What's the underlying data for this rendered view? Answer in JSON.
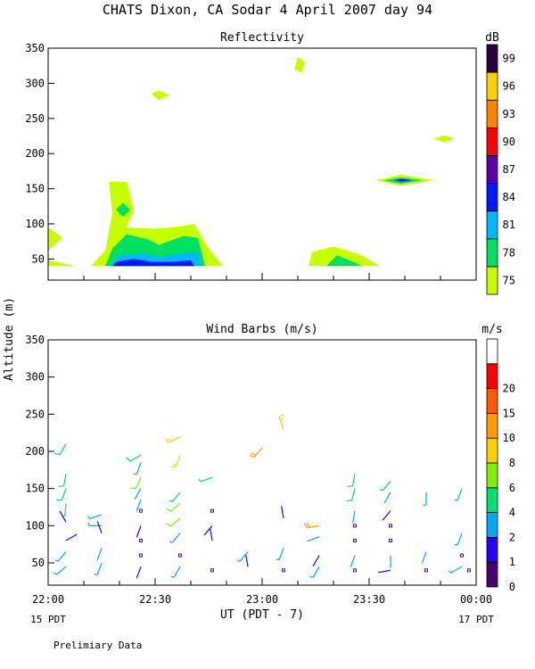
{
  "page_title": "CHATS Dixon, CA  Sodar   4 April 2007  day  94",
  "ylabel": "Altitude (m)",
  "footer_note": "Prelimiary Data",
  "chart_data": [
    {
      "type": "heatmap",
      "title": "Reflectivity",
      "units": "dB",
      "xlabel": "",
      "ylabel": "Altitude (m)",
      "xlim": [
        0,
        120
      ],
      "ylim": [
        20,
        350
      ],
      "yticks": [
        50,
        100,
        150,
        200,
        250,
        300,
        350
      ],
      "xticks_min": [
        0,
        10,
        20,
        30,
        40,
        50,
        60,
        70,
        80,
        90,
        100,
        110,
        120
      ],
      "colorbar": {
        "levels": [
          75,
          78,
          81,
          84,
          87,
          90,
          93,
          96,
          99
        ],
        "colors": [
          "#c6ff00",
          "#00e060",
          "#00b8ff",
          "#0018ff",
          "#5a00a8",
          "#ff0000",
          "#ff8400",
          "#ffd000",
          "#28003c"
        ]
      },
      "contours": [
        {
          "level": 75,
          "points": [
            [
              0,
              95
            ],
            [
              4,
              80
            ],
            [
              0,
              62
            ]
          ]
        },
        {
          "level": 75,
          "points": [
            [
              0,
              48
            ],
            [
              8,
              40
            ],
            [
              0,
              40
            ]
          ]
        },
        {
          "level": 75,
          "points": [
            [
              12,
              40
            ],
            [
              16,
              62
            ],
            [
              18,
              115
            ],
            [
              17,
              160
            ],
            [
              22,
              160
            ],
            [
              24,
              120
            ],
            [
              22,
              95
            ],
            [
              30,
              93
            ],
            [
              36,
              96
            ],
            [
              41,
              100
            ],
            [
              45,
              65
            ],
            [
              49,
              40
            ]
          ]
        },
        {
          "level": 75,
          "points": [
            [
              29,
              285
            ],
            [
              31,
              290
            ],
            [
              34,
              283
            ],
            [
              31,
              276
            ]
          ]
        },
        {
          "level": 75,
          "points": [
            [
              69,
              320
            ],
            [
              70,
              338
            ],
            [
              72,
              330
            ],
            [
              71,
              315
            ]
          ]
        },
        {
          "level": 75,
          "points": [
            [
              73,
              40
            ],
            [
              74,
              60
            ],
            [
              80,
              68
            ],
            [
              88,
              55
            ],
            [
              93,
              40
            ]
          ]
        },
        {
          "level": 75,
          "points": [
            [
              92,
              162
            ],
            [
              99,
              170
            ],
            [
              108,
              162
            ],
            [
              99,
              154
            ]
          ]
        },
        {
          "level": 75,
          "points": [
            [
              108,
              221
            ],
            [
              111,
              226
            ],
            [
              114,
              221
            ],
            [
              111,
              216
            ]
          ]
        },
        {
          "level": 78,
          "points": [
            [
              16,
              40
            ],
            [
              18,
              65
            ],
            [
              22,
              85
            ],
            [
              28,
              78
            ],
            [
              31,
              70
            ],
            [
              38,
              83
            ],
            [
              42,
              80
            ],
            [
              44,
              40
            ]
          ]
        },
        {
          "level": 78,
          "points": [
            [
              19,
              120
            ],
            [
              21,
              130
            ],
            [
              23,
              120
            ],
            [
              21,
              110
            ]
          ]
        },
        {
          "level": 78,
          "points": [
            [
              78,
              40
            ],
            [
              81,
              55
            ],
            [
              86,
              45
            ],
            [
              88,
              40
            ]
          ]
        },
        {
          "level": 78,
          "points": [
            [
              94,
              162
            ],
            [
              99,
              166
            ],
            [
              105,
              162
            ],
            [
              99,
              157
            ]
          ]
        },
        {
          "level": 81,
          "points": [
            [
              17,
              40
            ],
            [
              20,
              55
            ],
            [
              27,
              58
            ],
            [
              31,
              52
            ],
            [
              36,
              57
            ],
            [
              42,
              60
            ],
            [
              43,
              40
            ]
          ]
        },
        {
          "level": 81,
          "points": [
            [
              96,
              162
            ],
            [
              99,
              165
            ],
            [
              103,
              162
            ],
            [
              99,
              159
            ]
          ]
        },
        {
          "level": 84,
          "points": [
            [
              18,
              40
            ],
            [
              19,
              46
            ],
            [
              24,
              50
            ],
            [
              29,
              46
            ],
            [
              35,
              46
            ],
            [
              40,
              48
            ],
            [
              41,
              40
            ]
          ]
        },
        {
          "level": 84,
          "points": [
            [
              97,
              162
            ],
            [
              99,
              164
            ],
            [
              102,
              162
            ],
            [
              99,
              160
            ]
          ]
        },
        {
          "level": 87,
          "points": [
            [
              98,
              162
            ],
            [
              99,
              163
            ],
            [
              101,
              162
            ],
            [
              99,
              161
            ]
          ]
        }
      ]
    },
    {
      "type": "scatter",
      "title": "Wind Barbs (m/s)",
      "units": "m/s",
      "xlabel": "UT  (PDT - 7)",
      "ylabel": "Altitude (m)",
      "xlim": [
        0,
        120
      ],
      "ylim": [
        20,
        350
      ],
      "yticks": [
        50,
        100,
        150,
        200,
        250,
        300,
        350
      ],
      "xtick_labels": [
        {
          "x": 0,
          "label": "22:00"
        },
        {
          "x": 30,
          "label": "22:30"
        },
        {
          "x": 60,
          "label": "23:00"
        },
        {
          "x": 90,
          "label": "23:30"
        },
        {
          "x": 120,
          "label": "00:00"
        }
      ],
      "xtick_sublabels": [
        {
          "x": 0,
          "label": "15 PDT"
        },
        {
          "x": 120,
          "label": "17 PDT"
        }
      ],
      "colorbar": {
        "levels": [
          0,
          1,
          2,
          4,
          6,
          8,
          10,
          15,
          20
        ],
        "colors": [
          "#4a0070",
          "#2800ff",
          "#00a8ff",
          "#00e070",
          "#80f000",
          "#ffd000",
          "#ff9a00",
          "#ff5a00",
          "#ff0000",
          "#ffffff"
        ]
      },
      "barbs": [
        {
          "t": 5,
          "z": 210,
          "speed": 5,
          "dir": 210
        },
        {
          "t": 5,
          "z": 170,
          "speed": 5,
          "dir": 190
        },
        {
          "t": 5,
          "z": 150,
          "speed": 5,
          "dir": 200
        },
        {
          "t": 5,
          "z": 130,
          "speed": 4,
          "dir": 185
        },
        {
          "t": 5,
          "z": 105,
          "speed": 1,
          "dir": 330
        },
        {
          "t": 5,
          "z": 80,
          "speed": 1.5,
          "dir": 60
        },
        {
          "t": 5,
          "z": 65,
          "speed": 3,
          "dir": 220
        },
        {
          "t": 5,
          "z": 45,
          "speed": 3,
          "dir": 230
        },
        {
          "t": 15,
          "z": 115,
          "speed": 3,
          "dir": 250
        },
        {
          "t": 15,
          "z": 100,
          "speed": 3,
          "dir": 270
        },
        {
          "t": 15,
          "z": 90,
          "speed": 1,
          "dir": 340
        },
        {
          "t": 15,
          "z": 70,
          "speed": 2,
          "dir": 200
        },
        {
          "t": 15,
          "z": 50,
          "speed": 3,
          "dir": 200
        },
        {
          "t": 26,
          "z": 195,
          "speed": 5,
          "dir": 240
        },
        {
          "t": 26,
          "z": 185,
          "speed": 3,
          "dir": 200
        },
        {
          "t": 26,
          "z": 165,
          "speed": 7,
          "dir": 205
        },
        {
          "t": 26,
          "z": 150,
          "speed": 2,
          "dir": 210
        },
        {
          "t": 26,
          "z": 135,
          "speed": 2,
          "dir": 200
        },
        {
          "t": 26,
          "z": 120,
          "speed": 0,
          "dir": 0
        },
        {
          "t": 26,
          "z": 100,
          "speed": 1,
          "dir": 200
        },
        {
          "t": 26,
          "z": 80,
          "speed": 0,
          "dir": 0
        },
        {
          "t": 26,
          "z": 60,
          "speed": 0,
          "dir": 0
        },
        {
          "t": 26,
          "z": 45,
          "speed": 1,
          "dir": 200
        },
        {
          "t": 37,
          "z": 220,
          "speed": 9,
          "dir": 240
        },
        {
          "t": 37,
          "z": 195,
          "speed": 9,
          "dir": 200
        },
        {
          "t": 37,
          "z": 145,
          "speed": 4,
          "dir": 220
        },
        {
          "t": 37,
          "z": 130,
          "speed": 7,
          "dir": 230
        },
        {
          "t": 37,
          "z": 110,
          "speed": 7,
          "dir": 230
        },
        {
          "t": 37,
          "z": 90,
          "speed": 3,
          "dir": 220
        },
        {
          "t": 37,
          "z": 60,
          "speed": 0,
          "dir": 0
        },
        {
          "t": 37,
          "z": 45,
          "speed": 3,
          "dir": 210
        },
        {
          "t": 46,
          "z": 165,
          "speed": 4,
          "dir": 250
        },
        {
          "t": 46,
          "z": 120,
          "speed": 0,
          "dir": 0
        },
        {
          "t": 46,
          "z": 100,
          "speed": 1,
          "dir": 220
        },
        {
          "t": 46,
          "z": 80,
          "speed": 1,
          "dir": 350
        },
        {
          "t": 46,
          "z": 40,
          "speed": 0,
          "dir": 0
        },
        {
          "t": 56,
          "z": 45,
          "speed": 1,
          "dir": 350
        },
        {
          "t": 56,
          "z": 65,
          "speed": 3,
          "dir": 220
        },
        {
          "t": 60,
          "z": 205,
          "speed": 10,
          "dir": 220
        },
        {
          "t": 66,
          "z": 230,
          "speed": 8,
          "dir": 340
        },
        {
          "t": 66,
          "z": 110,
          "speed": 1,
          "dir": 350
        },
        {
          "t": 66,
          "z": 70,
          "speed": 3,
          "dir": 200
        },
        {
          "t": 66,
          "z": 40,
          "speed": 0,
          "dir": 0
        },
        {
          "t": 76,
          "z": 100,
          "speed": 12,
          "dir": 260
        },
        {
          "t": 76,
          "z": 85,
          "speed": 2,
          "dir": 250
        },
        {
          "t": 76,
          "z": 60,
          "speed": 1,
          "dir": 210
        },
        {
          "t": 76,
          "z": 45,
          "speed": 3,
          "dir": 210
        },
        {
          "t": 86,
          "z": 170,
          "speed": 5,
          "dir": 190
        },
        {
          "t": 86,
          "z": 150,
          "speed": 5,
          "dir": 195
        },
        {
          "t": 86,
          "z": 120,
          "speed": 2,
          "dir": 190
        },
        {
          "t": 86,
          "z": 100,
          "speed": 0,
          "dir": 0
        },
        {
          "t": 86,
          "z": 80,
          "speed": 0,
          "dir": 0
        },
        {
          "t": 86,
          "z": 60,
          "speed": 2,
          "dir": 200
        },
        {
          "t": 86,
          "z": 40,
          "speed": 0,
          "dir": 0
        },
        {
          "t": 96,
          "z": 160,
          "speed": 4,
          "dir": 220
        },
        {
          "t": 96,
          "z": 145,
          "speed": 2,
          "dir": 210
        },
        {
          "t": 96,
          "z": 120,
          "speed": 1,
          "dir": 220
        },
        {
          "t": 96,
          "z": 100,
          "speed": 0,
          "dir": 0
        },
        {
          "t": 96,
          "z": 80,
          "speed": 0,
          "dir": 0
        },
        {
          "t": 96,
          "z": 60,
          "speed": 2,
          "dir": 180
        },
        {
          "t": 96,
          "z": 40,
          "speed": 1,
          "dir": 260
        },
        {
          "t": 106,
          "z": 145,
          "speed": 3,
          "dir": 180
        },
        {
          "t": 106,
          "z": 40,
          "speed": 0,
          "dir": 0
        },
        {
          "t": 106,
          "z": 65,
          "speed": 2,
          "dir": 200
        },
        {
          "t": 116,
          "z": 150,
          "speed": 3,
          "dir": 200
        },
        {
          "t": 116,
          "z": 90,
          "speed": 3,
          "dir": 200
        },
        {
          "t": 116,
          "z": 60,
          "speed": 0,
          "dir": 0
        },
        {
          "t": 116,
          "z": 45,
          "speed": 3,
          "dir": 240
        },
        {
          "t": 118,
          "z": 40,
          "speed": 0,
          "dir": 0
        }
      ]
    }
  ]
}
